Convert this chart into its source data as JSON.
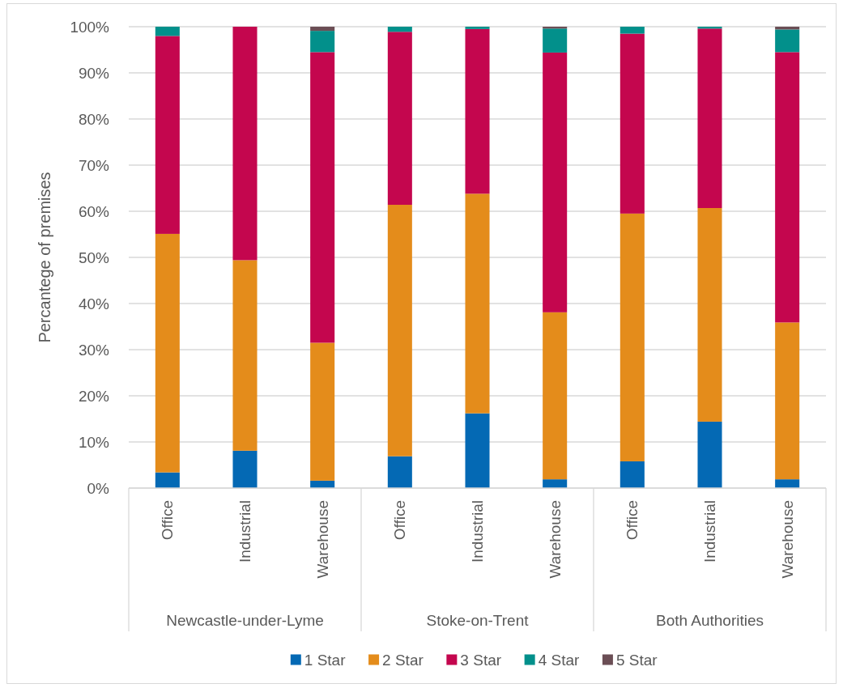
{
  "chart_data": {
    "type": "bar",
    "stacked": true,
    "ylabel": "Percantege of premises",
    "categories": [
      "Office",
      "Industrial",
      "Warehouse",
      "Office",
      "Industrial",
      "Warehouse",
      "Office",
      "Industrial",
      "Warehouse"
    ],
    "annotations": [
      "Newcastle-under-Lyme",
      "Stoke-on-Trent",
      "Both Authorities"
    ],
    "series": [
      {
        "name": "1 Star",
        "color": "#0469b4",
        "values": [
          3.4,
          8.1,
          1.6,
          6.9,
          16.2,
          1.9,
          5.8,
          14.4,
          1.9
        ]
      },
      {
        "name": "2 Star",
        "color": "#e48c1b",
        "values": [
          51.7,
          41.3,
          29.9,
          54.5,
          47.6,
          36.2,
          53.7,
          46.3,
          34.0
        ]
      },
      {
        "name": "3 Star",
        "color": "#c4064e",
        "values": [
          42.9,
          50.6,
          63.0,
          37.5,
          35.7,
          56.3,
          39.0,
          38.9,
          58.6
        ]
      },
      {
        "name": "4 Star",
        "color": "#02908b",
        "values": [
          2.0,
          null,
          4.6,
          1.1,
          0.5,
          5.2,
          1.5,
          0.4,
          4.9
        ]
      },
      {
        "name": "5 Star",
        "color": "#6b4e55",
        "values": [
          null,
          null,
          0.9,
          null,
          null,
          0.4,
          null,
          null,
          0.6
        ]
      }
    ],
    "ylim": [
      0,
      100
    ],
    "yticks": [
      {
        "value": 0,
        "label": "0%"
      },
      {
        "value": 10,
        "label": "10%"
      },
      {
        "value": 20,
        "label": "20%"
      },
      {
        "value": 30,
        "label": "30%"
      },
      {
        "value": 40,
        "label": "40%"
      },
      {
        "value": 50,
        "label": "50%"
      },
      {
        "value": 60,
        "label": "60%"
      },
      {
        "value": 70,
        "label": "70%"
      },
      {
        "value": 80,
        "label": "80%"
      },
      {
        "value": 90,
        "label": "90%"
      },
      {
        "value": 100,
        "label": "100%"
      }
    ],
    "grid": "y",
    "legend": "bottom"
  }
}
